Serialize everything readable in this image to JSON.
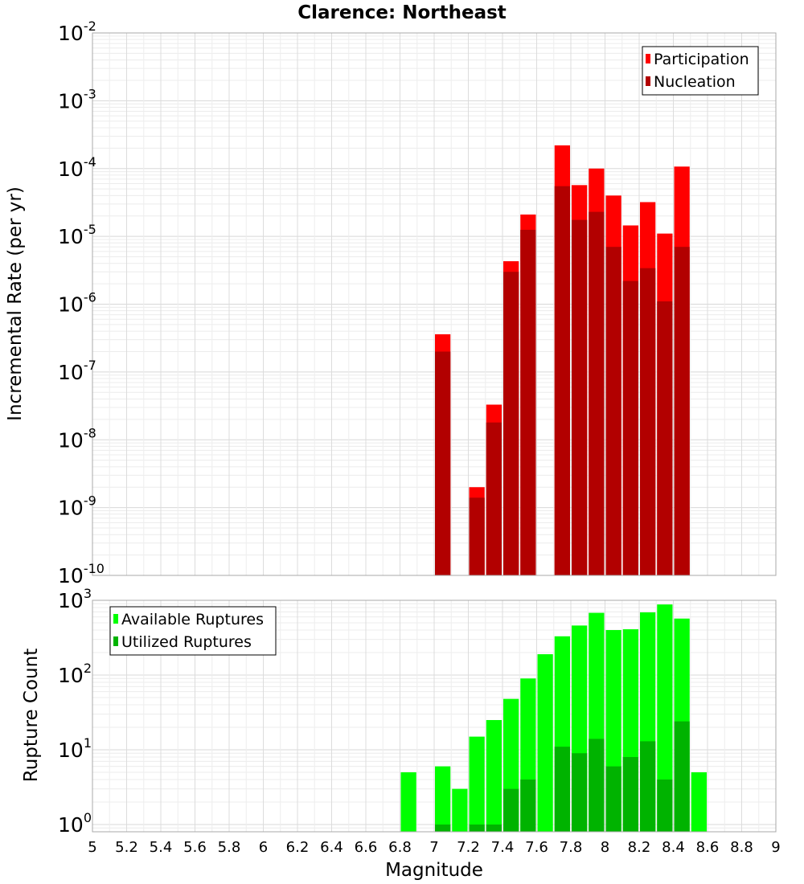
{
  "title": "Clarence: Northeast",
  "chart_data": [
    {
      "type": "bar",
      "panel": "top",
      "title": "Clarence: Northeast",
      "xlabel": "",
      "ylabel": "Incremental Rate (per yr)",
      "yscale": "log",
      "ylim": [
        1e-10,
        0.01
      ],
      "xlim": [
        5,
        9
      ],
      "grid": true,
      "legend_position": "top-right",
      "y_ticks": [
        {
          "base": "10",
          "exp": "-10"
        },
        {
          "base": "10",
          "exp": "-9"
        },
        {
          "base": "10",
          "exp": "-8"
        },
        {
          "base": "10",
          "exp": "-7"
        },
        {
          "base": "10",
          "exp": "-6"
        },
        {
          "base": "10",
          "exp": "-5"
        },
        {
          "base": "10",
          "exp": "-4"
        },
        {
          "base": "10",
          "exp": "-3"
        },
        {
          "base": "10",
          "exp": "-2"
        }
      ],
      "x": [
        7.05,
        7.25,
        7.35,
        7.45,
        7.55,
        7.75,
        7.85,
        7.95,
        8.05,
        8.15,
        8.25,
        8.35,
        8.45
      ],
      "series": [
        {
          "name": "Participation",
          "color": "#ff0000",
          "values": [
            3.6e-07,
            2e-09,
            3.3e-08,
            4.3e-06,
            2.1e-05,
            0.00022,
            5.7e-05,
            0.0001,
            4e-05,
            1.45e-05,
            3.2e-05,
            1.1e-05,
            0.000107
          ]
        },
        {
          "name": "Nucleation",
          "color": "#b20000",
          "values": [
            2e-07,
            1.4e-09,
            1.8e-08,
            3e-06,
            1.25e-05,
            5.5e-05,
            1.75e-05,
            2.3e-05,
            7e-06,
            2.2e-06,
            3.4e-06,
            1.1e-06,
            7e-06
          ]
        }
      ]
    },
    {
      "type": "bar",
      "panel": "bottom",
      "xlabel": "Magnitude",
      "ylabel": "Rupture Count",
      "yscale": "log",
      "ylim": [
        0.8,
        1000
      ],
      "xlim": [
        5,
        9
      ],
      "grid": true,
      "legend_position": "top-left",
      "y_ticks": [
        {
          "base": "10",
          "exp": "0"
        },
        {
          "base": "10",
          "exp": "1"
        },
        {
          "base": "10",
          "exp": "2"
        },
        {
          "base": "10",
          "exp": "3"
        }
      ],
      "x_ticks": [
        "5",
        "5.2",
        "5.4",
        "5.6",
        "5.8",
        "6",
        "6.2",
        "6.4",
        "6.6",
        "6.8",
        "7",
        "7.2",
        "7.4",
        "7.6",
        "7.8",
        "8",
        "8.2",
        "8.4",
        "8.6",
        "8.8",
        "9"
      ],
      "x": [
        6.85,
        7.05,
        7.15,
        7.25,
        7.35,
        7.45,
        7.55,
        7.65,
        7.75,
        7.85,
        7.95,
        8.05,
        8.15,
        8.25,
        8.35,
        8.45,
        8.55
      ],
      "series": [
        {
          "name": "Available Ruptures",
          "color": "#00ff00",
          "values": [
            5,
            6,
            3,
            15,
            25,
            48,
            90,
            190,
            330,
            460,
            680,
            400,
            410,
            690,
            880,
            570,
            5
          ]
        },
        {
          "name": "Utilized Ruptures",
          "color": "#00b300",
          "values": [
            null,
            1,
            null,
            1,
            1,
            3,
            4,
            null,
            11,
            9,
            14,
            6,
            8,
            13,
            4,
            24,
            null
          ]
        }
      ]
    }
  ]
}
